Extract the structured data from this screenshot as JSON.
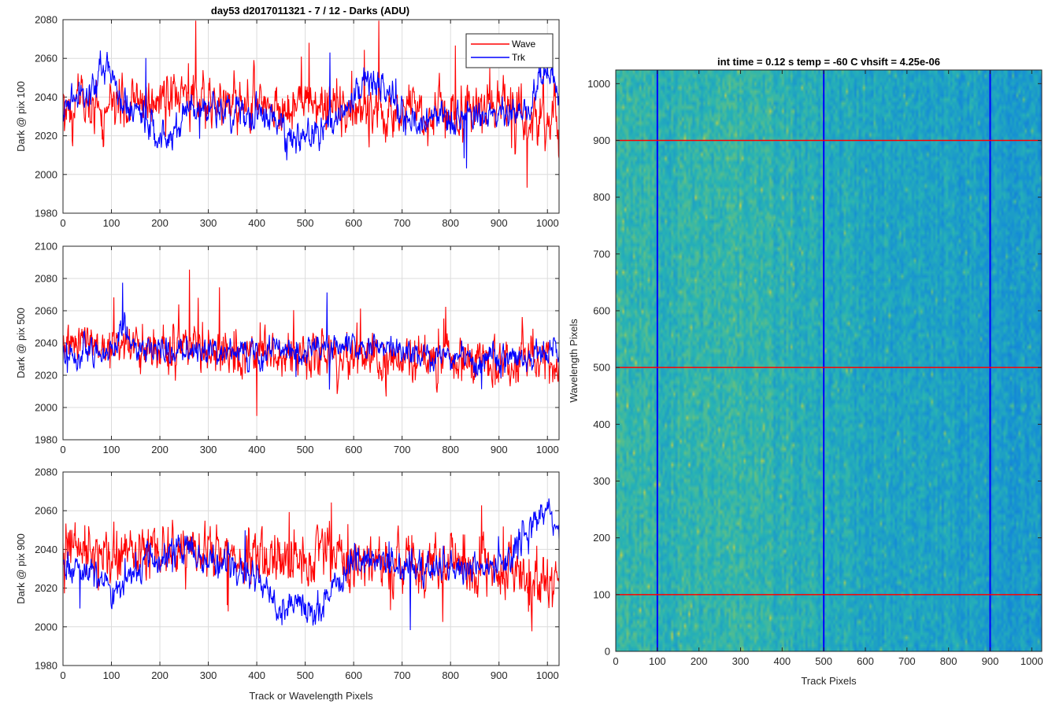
{
  "figure_title": "day53 d2017011321 - 7 / 12 - Darks (ADU)",
  "colors": {
    "wave": "#ff0000",
    "trk": "#0000ff",
    "grid": "#dcdcdc",
    "axis": "#262626"
  },
  "chart_data": [
    {
      "type": "line",
      "ylabel": "Dark @ pix 100",
      "xlim": [
        0,
        1024
      ],
      "ylim": [
        1980,
        2080
      ],
      "yticks": [
        1980,
        2000,
        2020,
        2040,
        2060,
        2080
      ],
      "xticks": [
        0,
        100,
        200,
        300,
        400,
        500,
        600,
        700,
        800,
        900,
        1000
      ],
      "grid": true,
      "legend": "top-right",
      "series": [
        {
          "name": "Wave",
          "color": "#ff0000",
          "mean": 2035,
          "noise": 7.5,
          "spikes": 14,
          "trend": [
            [
              0,
              2035
            ],
            [
              300,
              2038
            ],
            [
              600,
              2033
            ],
            [
              1024,
              2030
            ]
          ]
        },
        {
          "name": "Trk",
          "color": "#0000ff",
          "mean": 2035,
          "noise": 4.5,
          "spikes": 5,
          "trend": [
            [
              0,
              2033
            ],
            [
              60,
              2045
            ],
            [
              90,
              2060
            ],
            [
              120,
              2038
            ],
            [
              200,
              2020
            ],
            [
              260,
              2032
            ],
            [
              340,
              2035
            ],
            [
              420,
              2030
            ],
            [
              470,
              2020
            ],
            [
              560,
              2025
            ],
            [
              620,
              2048
            ],
            [
              660,
              2046
            ],
            [
              720,
              2025
            ],
            [
              800,
              2030
            ],
            [
              900,
              2030
            ],
            [
              960,
              2035
            ],
            [
              1000,
              2055
            ],
            [
              1024,
              2040
            ]
          ]
        }
      ]
    },
    {
      "type": "line",
      "ylabel": "Dark @ pix 500",
      "xlim": [
        0,
        1024
      ],
      "ylim": [
        1980,
        2100
      ],
      "yticks": [
        1980,
        2000,
        2020,
        2040,
        2060,
        2080,
        2100
      ],
      "xticks": [
        0,
        100,
        200,
        300,
        400,
        500,
        600,
        700,
        800,
        900,
        1000
      ],
      "grid": true,
      "series": [
        {
          "name": "Wave",
          "color": "#ff0000",
          "mean": 2035,
          "noise": 8,
          "spikes": 14,
          "trend": [
            [
              0,
              2038
            ],
            [
              300,
              2036
            ],
            [
              600,
              2032
            ],
            [
              1024,
              2028
            ]
          ]
        },
        {
          "name": "Trk",
          "color": "#0000ff",
          "mean": 2033,
          "noise": 4.5,
          "spikes": 5,
          "trend": [
            [
              0,
              2032
            ],
            [
              110,
              2034
            ],
            [
              125,
              2055
            ],
            [
              140,
              2038
            ],
            [
              300,
              2034
            ],
            [
              420,
              2035
            ],
            [
              500,
              2033
            ],
            [
              560,
              2040
            ],
            [
              700,
              2035
            ],
            [
              850,
              2030
            ],
            [
              1024,
              2035
            ]
          ]
        }
      ]
    },
    {
      "type": "line",
      "ylabel": "Dark @ pix 900",
      "xlabel": "Track or Wavelength Pixels",
      "xlim": [
        0,
        1024
      ],
      "ylim": [
        1980,
        2080
      ],
      "yticks": [
        1980,
        2000,
        2020,
        2040,
        2060,
        2080
      ],
      "xticks": [
        0,
        100,
        200,
        300,
        400,
        500,
        600,
        700,
        800,
        900,
        1000
      ],
      "grid": true,
      "series": [
        {
          "name": "Wave",
          "color": "#ff0000",
          "mean": 2035,
          "noise": 8,
          "spikes": 14,
          "trend": [
            [
              0,
              2038
            ],
            [
              300,
              2040
            ],
            [
              600,
              2034
            ],
            [
              1024,
              2025
            ]
          ]
        },
        {
          "name": "Trk",
          "color": "#0000ff",
          "mean": 2033,
          "noise": 4.5,
          "spikes": 5,
          "trend": [
            [
              0,
              2032
            ],
            [
              60,
              2030
            ],
            [
              100,
              2018
            ],
            [
              150,
              2030
            ],
            [
              250,
              2040
            ],
            [
              350,
              2030
            ],
            [
              400,
              2025
            ],
            [
              450,
              2005
            ],
            [
              480,
              2015
            ],
            [
              520,
              2005
            ],
            [
              560,
              2020
            ],
            [
              600,
              2035
            ],
            [
              700,
              2033
            ],
            [
              800,
              2030
            ],
            [
              900,
              2032
            ],
            [
              950,
              2045
            ],
            [
              990,
              2060
            ],
            [
              1024,
              2055
            ]
          ]
        }
      ]
    },
    {
      "type": "heatmap",
      "title": "int time = 0.12 s   temp = -60 C   vhsift = 4.25e-06",
      "xlabel": "Track Pixels",
      "ylabel": "Wavelength Pixels",
      "xlim": [
        0,
        1024
      ],
      "ylim": [
        0,
        1024
      ],
      "xticks": [
        0,
        100,
        200,
        300,
        400,
        500,
        600,
        700,
        800,
        900,
        1000
      ],
      "yticks": [
        0,
        100,
        200,
        300,
        400,
        500,
        600,
        700,
        800,
        900,
        1000
      ],
      "horizontal_lines": [
        100,
        500,
        900
      ],
      "vertical_lines": [
        100,
        500,
        900
      ],
      "horizontal_line_color": "#ff0000",
      "vertical_line_color": "#0000ff",
      "colormap": "parula"
    }
  ]
}
